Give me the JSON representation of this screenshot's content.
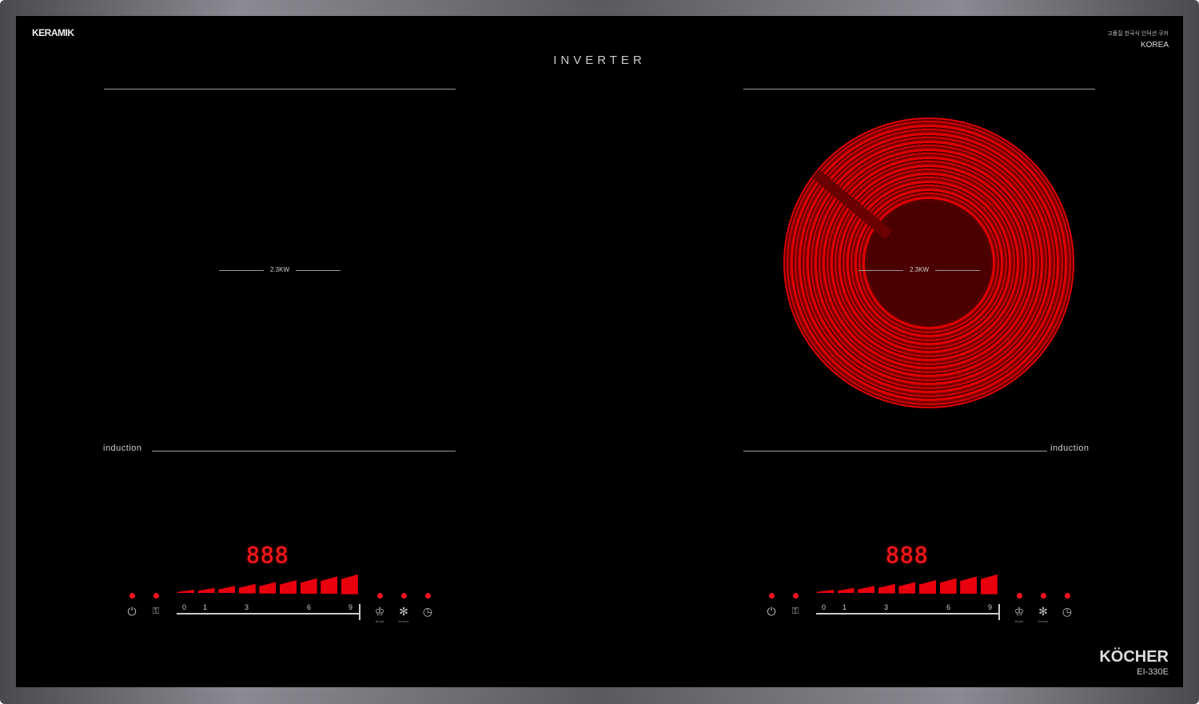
{
  "brand_top_left": "KERAMIK",
  "tagline_korean": "고품질 한국식 인덕션 쿠커",
  "country": "KOREA",
  "center_title": "INVERTER",
  "brand_bottom": "KÖCHER",
  "model": "EI-330E",
  "accent_color": "#e8000d",
  "zones": [
    {
      "power_label": "2.3KW",
      "type_label": "induction",
      "heating": false,
      "display": "888",
      "scale": [
        "0",
        "1",
        "3",
        "6",
        "9"
      ],
      "levels": 9,
      "buttons": [
        {
          "icon": "power-icon"
        },
        {
          "icon": "lock-icon"
        },
        {
          "icon": "boost-icon",
          "label": "Boost"
        },
        {
          "icon": "defrost-icon",
          "label": "Defrost"
        },
        {
          "icon": "timer-icon"
        }
      ]
    },
    {
      "power_label": "2.3KW",
      "type_label": "induction",
      "heating": true,
      "display": "888",
      "scale": [
        "0",
        "1",
        "3",
        "6",
        "9"
      ],
      "levels": 9,
      "buttons": [
        {
          "icon": "power-icon"
        },
        {
          "icon": "lock-icon"
        },
        {
          "icon": "boost-icon",
          "label": "Boost"
        },
        {
          "icon": "defrost-icon",
          "label": "Defrost"
        },
        {
          "icon": "timer-icon"
        }
      ]
    }
  ]
}
